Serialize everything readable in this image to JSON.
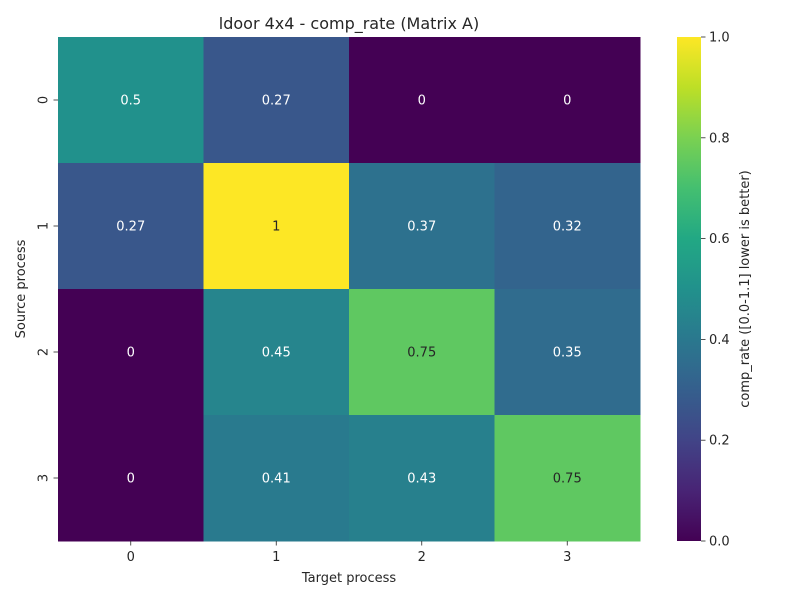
{
  "chart_data": {
    "type": "heatmap",
    "title": "ldoor 4x4 - comp_rate (Matrix A)",
    "xlabel": "Target process",
    "ylabel": "Source process",
    "x_categories": [
      "0",
      "1",
      "2",
      "3"
    ],
    "y_categories": [
      "0",
      "1",
      "2",
      "3"
    ],
    "values": [
      [
        0.5,
        0.27,
        0,
        0
      ],
      [
        0.27,
        1,
        0.37,
        0.32
      ],
      [
        0,
        0.45,
        0.75,
        0.35
      ],
      [
        0,
        0.41,
        0.43,
        0.75
      ]
    ],
    "colorbar": {
      "label": "comp_rate ([0.0-1.1] lower is better)",
      "range": [
        0.0,
        1.0
      ],
      "ticks": [
        "0.0",
        "0.2",
        "0.4",
        "0.6",
        "0.8",
        "1.0"
      ],
      "colormap": "viridis"
    },
    "annotation_colors": {
      "light": "#ffffff",
      "dark": "#262626"
    }
  }
}
